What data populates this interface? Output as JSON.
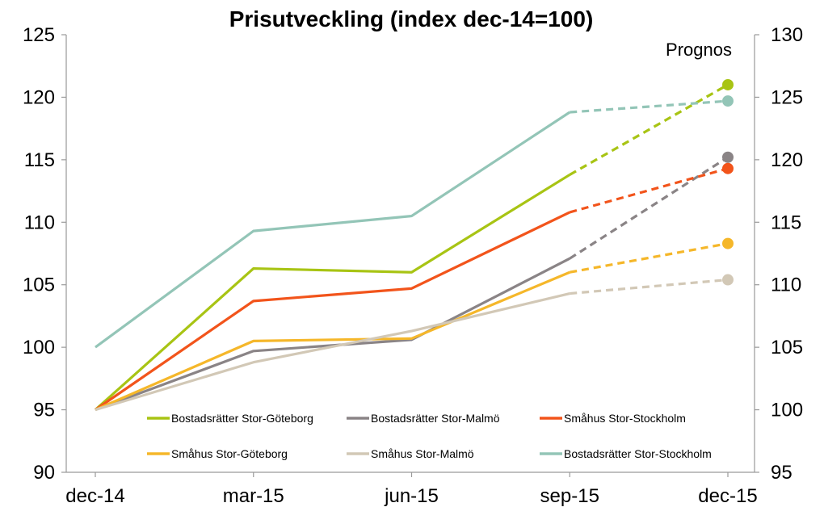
{
  "chart_data": {
    "type": "line",
    "title": "Prisutveckling (index dec-14=100)",
    "annotation": "Prognos",
    "categories": [
      "dec-14",
      "mar-15",
      "jun-15",
      "sep-15",
      "dec-15"
    ],
    "forecast_from_index": 3,
    "y_left": {
      "min": 90,
      "max": 125,
      "step": 5,
      "ticks": [
        "90",
        "95",
        "100",
        "105",
        "110",
        "115",
        "120",
        "125"
      ]
    },
    "y_right": {
      "min": 95,
      "max": 130,
      "step": 5,
      "ticks": [
        "95",
        "100",
        "105",
        "110",
        "115",
        "120",
        "125",
        "130"
      ]
    },
    "grid": false,
    "legend_position": "bottom-inside",
    "series": [
      {
        "name": "Bostadsrätter Stor-Göteborg",
        "color": "#a8c414",
        "axis": "right",
        "values": [
          100,
          111.3,
          111.0,
          118.8,
          126.0
        ]
      },
      {
        "name": "Bostadsrätter Stor-Malmö",
        "color": "#8a8486",
        "axis": "right",
        "values": [
          100,
          104.7,
          105.6,
          112.1,
          120.2
        ]
      },
      {
        "name": "Småhus Stor-Stockholm",
        "color": "#f2541b",
        "axis": "right",
        "values": [
          100,
          108.7,
          109.7,
          115.8,
          119.3
        ]
      },
      {
        "name": "Småhus Stor-Göteborg",
        "color": "#f5b72a",
        "axis": "right",
        "values": [
          100,
          105.5,
          105.7,
          111.0,
          113.3
        ]
      },
      {
        "name": "Småhus Stor-Malmö",
        "color": "#d2c8b6",
        "axis": "right",
        "values": [
          100,
          103.8,
          106.3,
          109.3,
          110.4
        ]
      },
      {
        "name": "Bostadsrätter Stor-Stockholm",
        "color": "#93c5b7",
        "axis": "left",
        "values": [
          100,
          109.3,
          110.5,
          118.8,
          119.7
        ]
      }
    ]
  }
}
